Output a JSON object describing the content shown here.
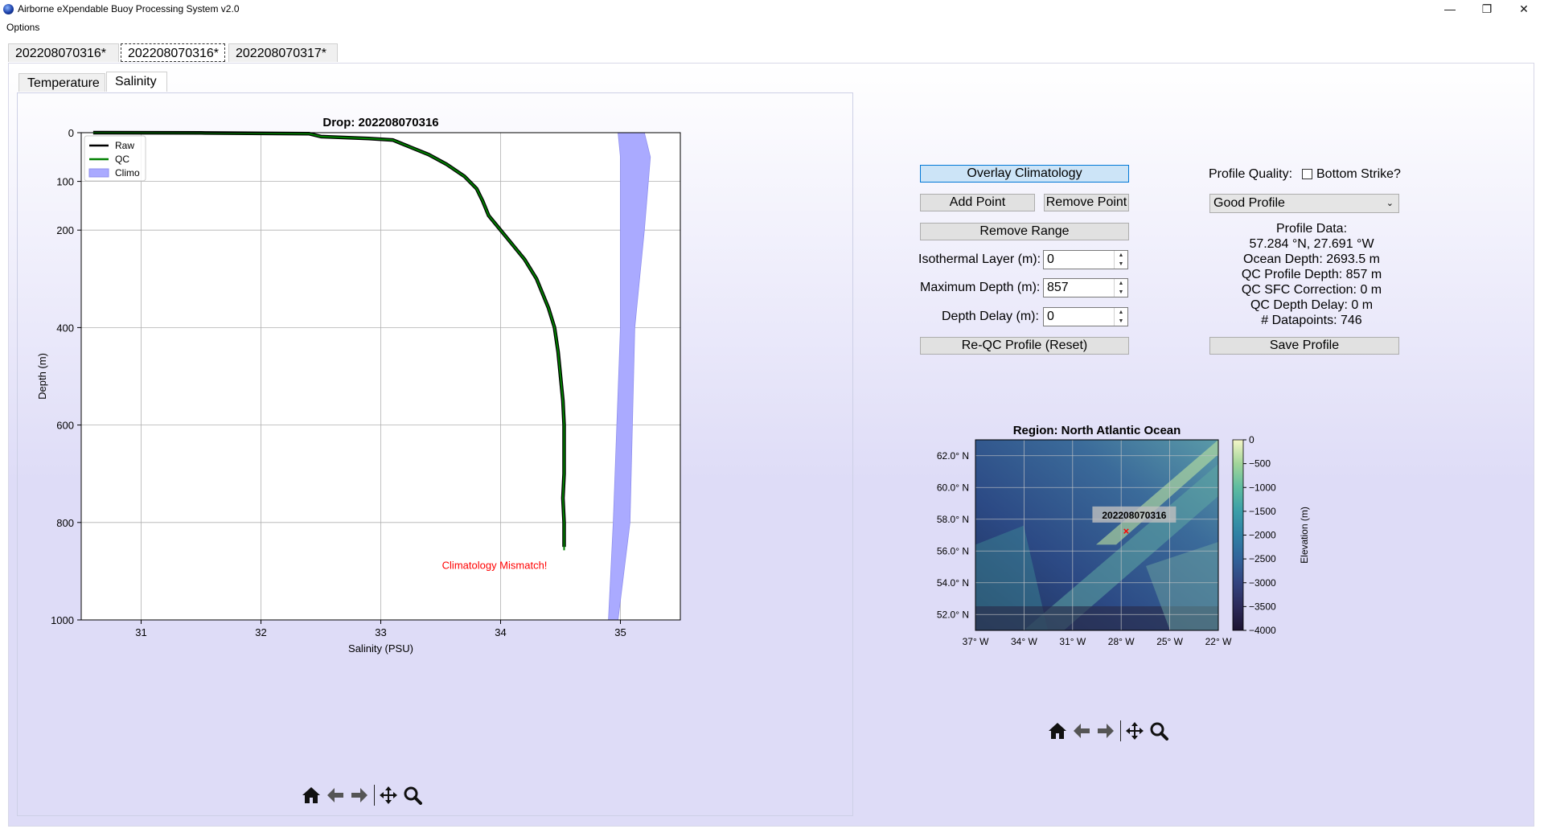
{
  "window": {
    "title": "Airborne eXpendable Buoy Processing System v2.0",
    "minimize": "—",
    "restore": "❐",
    "close": "✕"
  },
  "menu": {
    "options": "Options"
  },
  "top_tabs": [
    {
      "label": "202208070316*"
    },
    {
      "label": "202208070316*"
    },
    {
      "label": "202208070317*"
    }
  ],
  "sub_tabs": [
    {
      "label": "Temperature"
    },
    {
      "label": "Salinity"
    }
  ],
  "controls": {
    "overlay_climatology": "Overlay Climatology",
    "add_point": "Add Point",
    "remove_point": "Remove Point",
    "remove_range": "Remove Range",
    "isothermal_label": "Isothermal Layer (m):",
    "isothermal_value": "0",
    "max_depth_label": "Maximum Depth (m):",
    "max_depth_value": "857",
    "depth_delay_label": "Depth Delay (m):",
    "depth_delay_value": "0",
    "reqc": "Re-QC Profile (Reset)",
    "profile_quality_label": "Profile Quality:",
    "bottom_strike_label": "Bottom Strike?",
    "bottom_strike_checked": false,
    "quality_selected": "Good Profile",
    "save_profile": "Save Profile"
  },
  "profile_data": {
    "heading": "Profile Data:",
    "position": "57.284 °N, 27.691 °W",
    "ocean_depth": "Ocean Depth: 2693.5 m",
    "qc_profile_depth": "QC Profile Depth: 857 m",
    "qc_sfc_correction": "QC SFC Correction: 0 m",
    "qc_depth_delay": "QC Depth Delay: 0 m",
    "datapoints": "# Datapoints: 746"
  },
  "toolbar_icons": [
    "home-icon",
    "back-arrow-icon",
    "forward-arrow-icon",
    "pan-icon",
    "zoom-icon"
  ],
  "chart_data": [
    {
      "type": "line",
      "title": "Drop: 202208070316",
      "xlabel": "Salinity (PSU)",
      "ylabel": "Depth (m)",
      "xlim": [
        30.5,
        35.5
      ],
      "ylim": [
        1000,
        0
      ],
      "x_ticks": [
        "31",
        "32",
        "33",
        "34",
        "35"
      ],
      "y_ticks": [
        "0",
        "100",
        "200",
        "400",
        "600",
        "800",
        "1000"
      ],
      "grid": true,
      "legend_position": "top-left",
      "legend": [
        "Raw",
        "QC",
        "Climo"
      ],
      "annotation": "Climatology Mismatch!",
      "annotation_color": "#ff0000",
      "series": [
        {
          "name": "Raw",
          "color": "#000000",
          "points": [
            [
              30.6,
              0
            ],
            [
              31.5,
              0.5
            ],
            [
              32.4,
              2
            ],
            [
              32.5,
              8
            ],
            [
              32.9,
              12
            ],
            [
              33.1,
              15
            ],
            [
              33.15,
              20
            ],
            [
              33.25,
              30
            ],
            [
              33.4,
              45
            ],
            [
              33.55,
              65
            ],
            [
              33.7,
              90
            ],
            [
              33.8,
              115
            ],
            [
              33.85,
              140
            ],
            [
              33.9,
              170
            ],
            [
              34.0,
              200
            ],
            [
              34.1,
              230
            ],
            [
              34.2,
              260
            ],
            [
              34.3,
              300
            ],
            [
              34.35,
              330
            ],
            [
              34.4,
              360
            ],
            [
              34.45,
              400
            ],
            [
              34.48,
              450
            ],
            [
              34.5,
              500
            ],
            [
              34.52,
              550
            ],
            [
              34.53,
              600
            ],
            [
              34.53,
              650
            ],
            [
              34.53,
              700
            ],
            [
              34.52,
              750
            ],
            [
              34.53,
              800
            ],
            [
              34.53,
              850
            ]
          ]
        },
        {
          "name": "QC",
          "color": "#008000",
          "points": [
            [
              30.6,
              0
            ],
            [
              31.5,
              0.5
            ],
            [
              32.4,
              2
            ],
            [
              32.5,
              8
            ],
            [
              32.9,
              12
            ],
            [
              33.1,
              15
            ],
            [
              33.15,
              20
            ],
            [
              33.25,
              30
            ],
            [
              33.4,
              45
            ],
            [
              33.55,
              65
            ],
            [
              33.7,
              90
            ],
            [
              33.8,
              115
            ],
            [
              33.85,
              140
            ],
            [
              33.9,
              170
            ],
            [
              34.0,
              200
            ],
            [
              34.1,
              230
            ],
            [
              34.2,
              260
            ],
            [
              34.3,
              300
            ],
            [
              34.35,
              330
            ],
            [
              34.4,
              360
            ],
            [
              34.45,
              400
            ],
            [
              34.48,
              450
            ],
            [
              34.5,
              500
            ],
            [
              34.52,
              550
            ],
            [
              34.53,
              600
            ],
            [
              34.53,
              650
            ],
            [
              34.53,
              700
            ],
            [
              34.52,
              750
            ],
            [
              34.53,
              800
            ],
            [
              34.53,
              857
            ]
          ]
        },
        {
          "name": "Climo",
          "color": "#aaaaff",
          "band": [
            {
              "depth": 0,
              "min": 34.98,
              "max": 35.2
            },
            {
              "depth": 50,
              "min": 35.0,
              "max": 35.25
            },
            {
              "depth": 200,
              "min": 35.0,
              "max": 35.2
            },
            {
              "depth": 400,
              "min": 35.0,
              "max": 35.12
            },
            {
              "depth": 600,
              "min": 34.97,
              "max": 35.1
            },
            {
              "depth": 800,
              "min": 34.94,
              "max": 35.08
            },
            {
              "depth": 1000,
              "min": 34.9,
              "max": 34.98
            }
          ]
        }
      ]
    },
    {
      "type": "heatmap",
      "title": "Region: North Atlantic Ocean",
      "xlim": [
        -37,
        -22
      ],
      "ylim": [
        51,
        63
      ],
      "x_ticks": [
        "37$^\\circ$ W",
        "34$^\\circ$ W",
        "31$^\\circ$ W",
        "28$^\\circ$ W",
        "25$^\\circ$ W",
        "22$^\\circ$ W"
      ],
      "y_ticks": [
        "52.0$^\\circ$ N",
        "54.0$^\\circ$ N",
        "56.0$^\\circ$ N",
        "58.0$^\\circ$ N",
        "60.0$^\\circ$ N",
        "62.0$^\\circ$ N"
      ],
      "colorbar_label": "Elevation (m)",
      "colorbar_ticks": [
        "0",
        "−500",
        "−1000",
        "−1500",
        "−2000",
        "−2500",
        "−3000",
        "−3500",
        "−4000"
      ],
      "colorbar_range": [
        -4000,
        0
      ],
      "marker": {
        "lon": -27.691,
        "lat": 57.284,
        "label": "202208070316",
        "color": "#ff0000"
      },
      "grid": true
    }
  ]
}
